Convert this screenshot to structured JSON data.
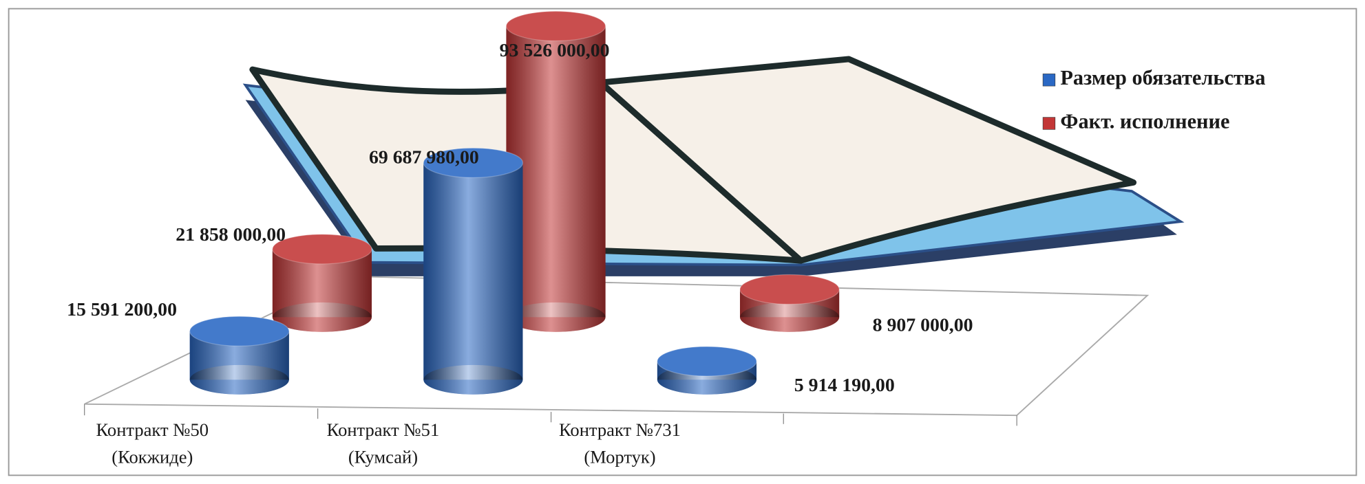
{
  "chart_data": {
    "type": "cylinder",
    "categories": [
      [
        "Контракт №50",
        "(Кокжиде)"
      ],
      [
        "Контракт №51",
        "(Кумсай)"
      ],
      [
        "Контракт №731",
        "(Мортук)"
      ]
    ],
    "series": [
      {
        "name": "Размер обязательства",
        "color": "#2a68c4",
        "values": [
          15591200,
          69687980,
          5914190
        ],
        "value_labels": [
          "15 591 200,00",
          "69 687 980,00",
          "5 914 190,00"
        ]
      },
      {
        "name": "Факт. исполнение",
        "color": "#c23636",
        "values": [
          21858000,
          93526000,
          8907000
        ],
        "value_labels": [
          "21 858 000,00",
          "93 526 000,00",
          "8 907 000,00"
        ]
      }
    ],
    "legend": "top-right"
  }
}
